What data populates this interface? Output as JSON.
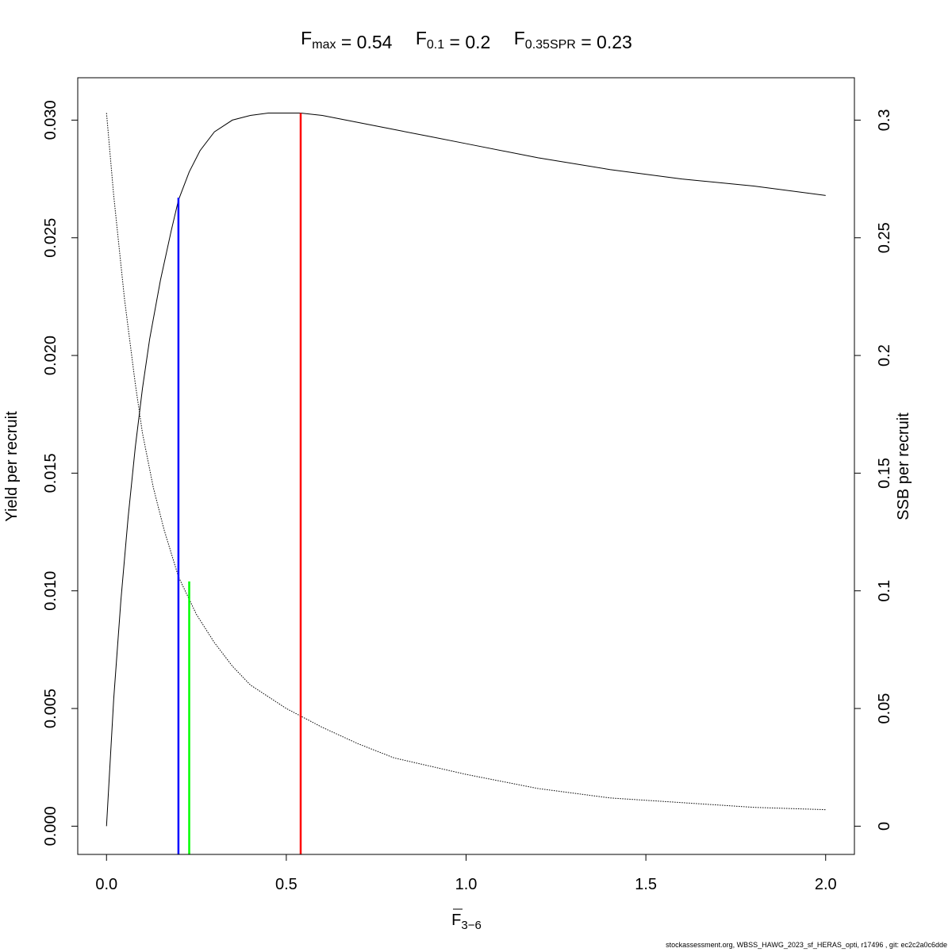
{
  "chart_data": {
    "type": "line",
    "title_parts": {
      "fmax": {
        "base": "F",
        "sub": "max",
        "value": "= 0.54"
      },
      "f01": {
        "base": "F",
        "sub": "0.1",
        "value": "= 0.2"
      },
      "fspr": {
        "base": "F",
        "sub": "0.35SPR",
        "value": "= 0.23"
      }
    },
    "xlabel": {
      "base": "F",
      "sub": "3−6"
    },
    "ylabel": "Yield per recruit",
    "y2label": "SSB per recruit",
    "xlim": [
      -0.08,
      2.08
    ],
    "ylim": [
      -0.0012,
      0.0318
    ],
    "y2lim": [
      -0.012,
      0.318
    ],
    "x_ticks": [
      "0.0",
      "0.5",
      "1.0",
      "1.5",
      "2.0"
    ],
    "x_tick_values": [
      0,
      0.5,
      1.0,
      1.5,
      2.0
    ],
    "y_ticks": [
      "0.000",
      "0.005",
      "0.010",
      "0.015",
      "0.020",
      "0.025",
      "0.030"
    ],
    "y_tick_values": [
      0,
      0.005,
      0.01,
      0.015,
      0.02,
      0.025,
      0.03
    ],
    "y2_ticks": [
      "0",
      "0.05",
      "0.1",
      "0.15",
      "0.2",
      "0.25",
      "0.3"
    ],
    "y2_tick_values": [
      0,
      0.05,
      0.1,
      0.15,
      0.2,
      0.25,
      0.3
    ],
    "series": [
      {
        "axis": "left",
        "style": "solid",
        "x": [
          0,
          0.02,
          0.04,
          0.06,
          0.08,
          0.1,
          0.12,
          0.15,
          0.18,
          0.2,
          0.23,
          0.26,
          0.3,
          0.35,
          0.4,
          0.45,
          0.5,
          0.54,
          0.6,
          0.7,
          0.8,
          0.9,
          1.0,
          1.2,
          1.4,
          1.6,
          1.8,
          2.0
        ],
        "y": [
          0,
          0.0054,
          0.0096,
          0.0131,
          0.0161,
          0.0186,
          0.0207,
          0.0232,
          0.0253,
          0.0266,
          0.0278,
          0.0287,
          0.0295,
          0.03,
          0.0302,
          0.0303,
          0.0303,
          0.0303,
          0.0302,
          0.0299,
          0.0296,
          0.0293,
          0.029,
          0.0284,
          0.0279,
          0.0275,
          0.0272,
          0.0268
        ]
      },
      {
        "axis": "right",
        "style": "dotted",
        "x": [
          0,
          0.02,
          0.05,
          0.08,
          0.1,
          0.13,
          0.16,
          0.2,
          0.25,
          0.3,
          0.35,
          0.4,
          0.5,
          0.6,
          0.7,
          0.8,
          1.0,
          1.2,
          1.4,
          1.6,
          1.8,
          2.0
        ],
        "y": [
          0.303,
          0.268,
          0.224,
          0.188,
          0.167,
          0.144,
          0.126,
          0.106,
          0.09,
          0.078,
          0.068,
          0.06,
          0.05,
          0.042,
          0.035,
          0.029,
          0.022,
          0.016,
          0.012,
          0.01,
          0.008,
          0.007
        ]
      }
    ],
    "reference_lines": [
      {
        "name": "fmax",
        "x": 0.54,
        "y_top": 0.0303,
        "color": "#ff0000"
      },
      {
        "name": "f01",
        "x": 0.2,
        "y_top": 0.0267,
        "color": "#0000ff"
      },
      {
        "name": "fspr",
        "x": 0.23,
        "y_top": 0.0104,
        "color": "#00ff00"
      }
    ],
    "grid": false,
    "legend": "none"
  },
  "footer": "stockassessment.org, WBSS_HAWG_2023_sf_HERAS_opti, r17496 , git: ec2c2a0c6dde"
}
